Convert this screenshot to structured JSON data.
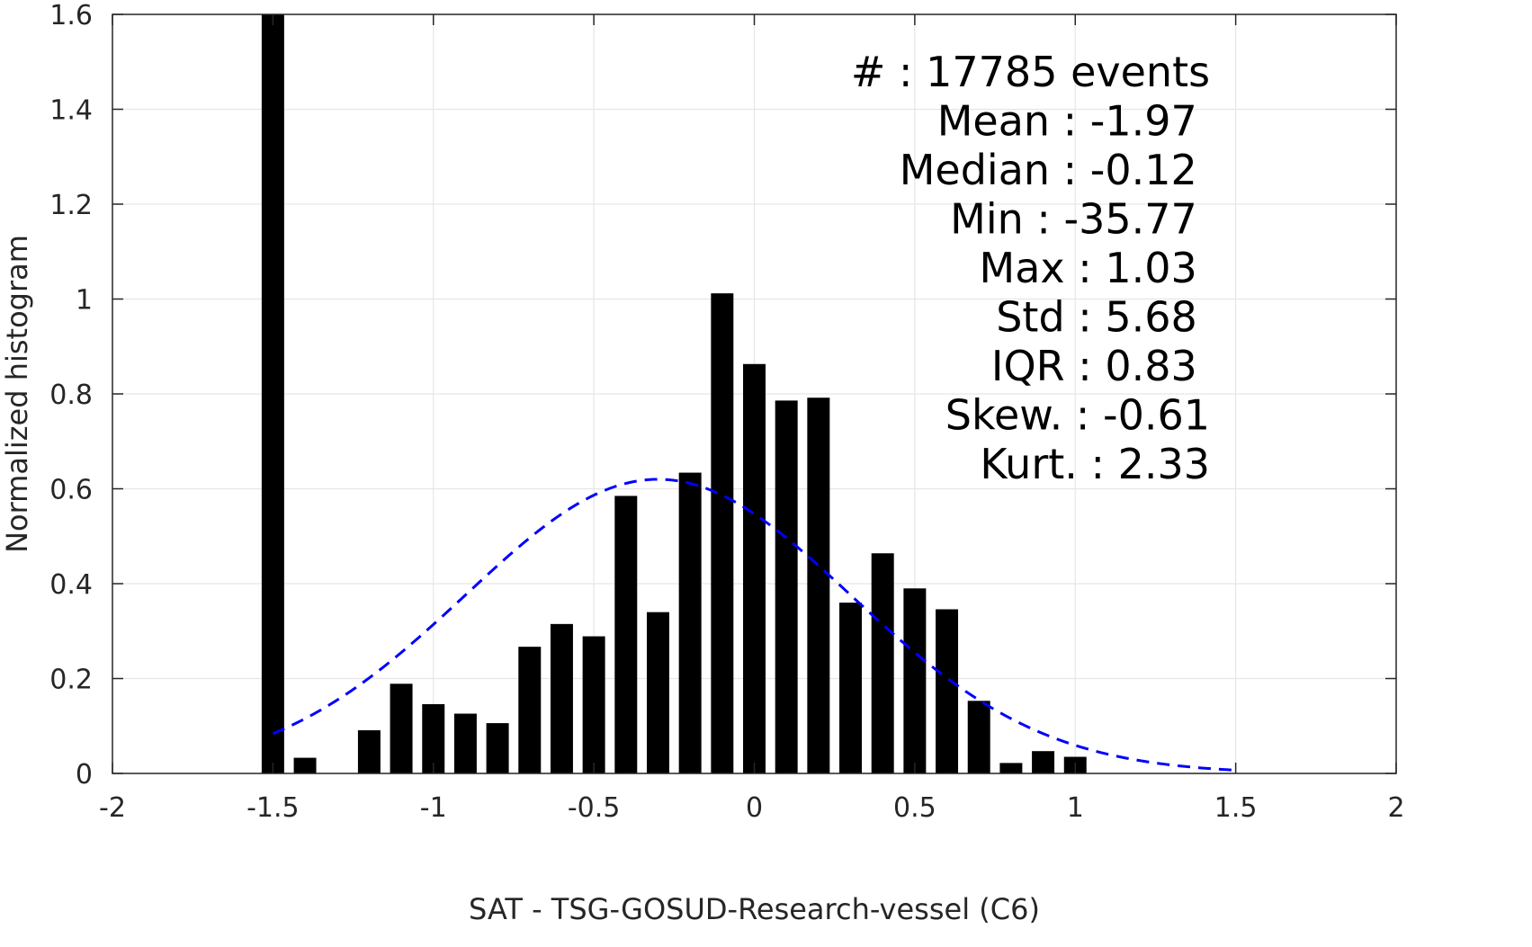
{
  "chart_data": {
    "type": "bar",
    "xlabel": "SAT - TSG-GOSUD-Research-vessel (C6)",
    "ylabel": "Normalized histogram",
    "xlim": [
      -2,
      2
    ],
    "ylim": [
      0,
      1.6
    ],
    "grid": true,
    "xticks": [
      -2,
      -1.5,
      -1,
      -0.5,
      0,
      0.5,
      1,
      1.5,
      2
    ],
    "xtick_labels": [
      "-2",
      "-1.5",
      "-1",
      "-0.5",
      "0",
      "0.5",
      "1",
      "1.5",
      "2"
    ],
    "yticks": [
      0,
      0.2,
      0.4,
      0.6,
      0.8,
      1,
      1.2,
      1.4,
      1.6
    ],
    "ytick_labels": [
      "0",
      "0.2",
      "0.4",
      "0.6",
      "0.8",
      "1",
      "1.2",
      "1.4",
      "1.6"
    ],
    "bar_width": 0.07,
    "bars": [
      {
        "x": -1.5,
        "y": 1.6
      },
      {
        "x": -1.4,
        "y": 0.033
      },
      {
        "x": -1.2,
        "y": 0.091
      },
      {
        "x": -1.1,
        "y": 0.189
      },
      {
        "x": -1.0,
        "y": 0.146
      },
      {
        "x": -0.9,
        "y": 0.126
      },
      {
        "x": -0.8,
        "y": 0.106
      },
      {
        "x": -0.7,
        "y": 0.267
      },
      {
        "x": -0.6,
        "y": 0.315
      },
      {
        "x": -0.5,
        "y": 0.289
      },
      {
        "x": -0.4,
        "y": 0.585
      },
      {
        "x": -0.3,
        "y": 0.34
      },
      {
        "x": -0.2,
        "y": 0.634
      },
      {
        "x": -0.1,
        "y": 1.012
      },
      {
        "x": 0.0,
        "y": 0.863
      },
      {
        "x": 0.1,
        "y": 0.786
      },
      {
        "x": 0.2,
        "y": 0.792
      },
      {
        "x": 0.3,
        "y": 0.36
      },
      {
        "x": 0.4,
        "y": 0.464
      },
      {
        "x": 0.5,
        "y": 0.39
      },
      {
        "x": 0.6,
        "y": 0.346
      },
      {
        "x": 0.7,
        "y": 0.153
      },
      {
        "x": 0.8,
        "y": 0.022
      },
      {
        "x": 0.9,
        "y": 0.047
      },
      {
        "x": 1.0,
        "y": 0.035
      }
    ],
    "fit_curve": {
      "style": "dashed",
      "color": "#0000ff",
      "x_range": [
        -1.5,
        1.5
      ],
      "peak_x": -0.3,
      "peak_y": 0.62,
      "sigma": 0.6
    },
    "stats": [
      {
        "label": "#  : 17785 events",
        "anchor_x": 1.42
      },
      {
        "label": "Mean : -1.97",
        "anchor_x": 1.38
      },
      {
        "label": "Median : -0.12",
        "anchor_x": 1.38
      },
      {
        "label": "Min : -35.77",
        "anchor_x": 1.38
      },
      {
        "label": "Max : 1.03",
        "anchor_x": 1.38
      },
      {
        "label": "Std : 5.68",
        "anchor_x": 1.38
      },
      {
        "label": "IQR : 0.83",
        "anchor_x": 1.38
      },
      {
        "label": "Skew. : -0.61",
        "anchor_x": 1.42
      },
      {
        "label": "Kurt. : 2.33",
        "anchor_x": 1.42
      }
    ],
    "colors": {
      "bars": "#000000",
      "grid": "#e6e6e6",
      "axes": "#262626"
    }
  }
}
